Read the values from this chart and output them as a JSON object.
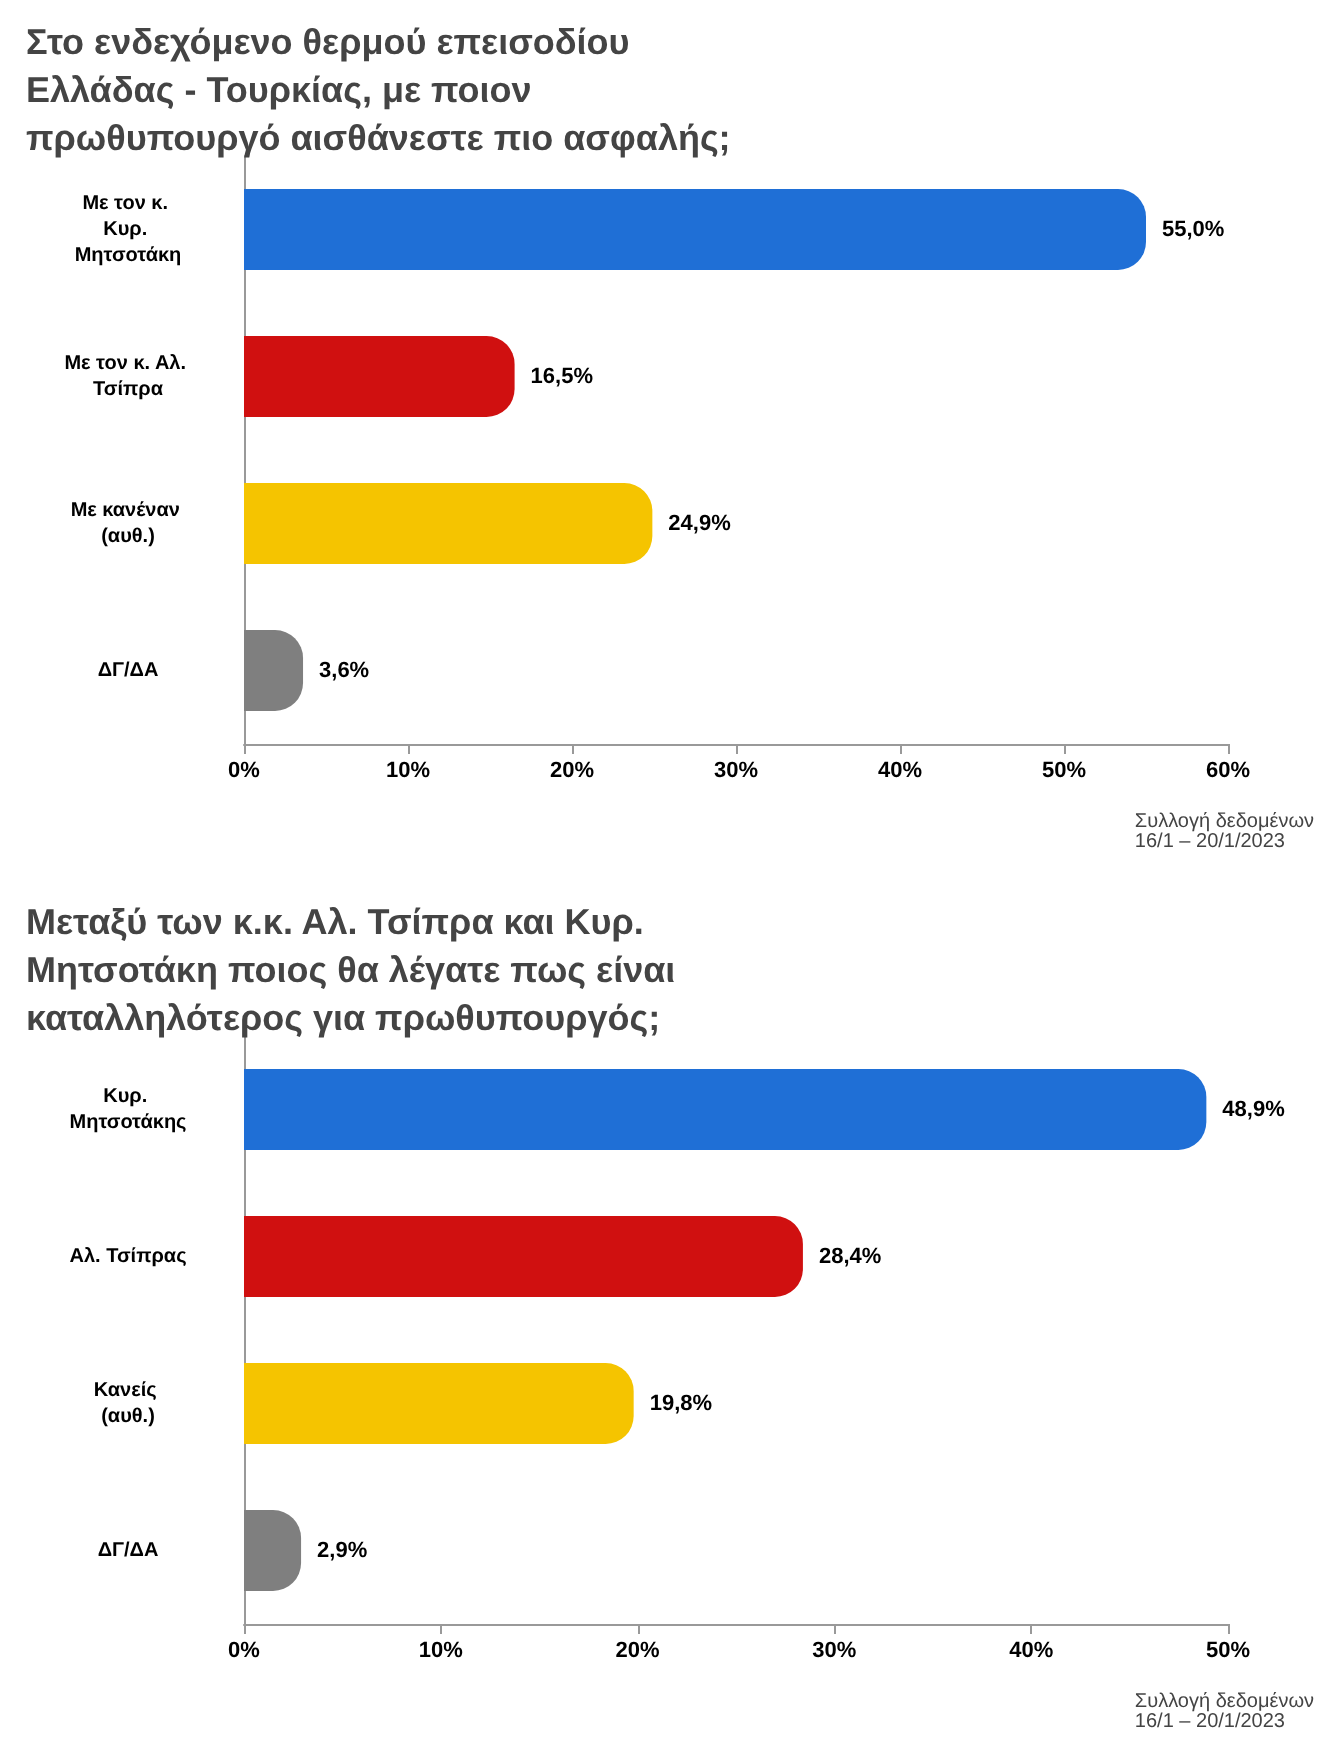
{
  "chart_data": [
    {
      "type": "bar",
      "orientation": "horizontal",
      "title": "Στο ενδεχόμενο θερμού επεισοδίου Ελλάδας - Τουρκίας, με ποιον πρωθυπουργό αισθάνεστε πιο ασφαλής;",
      "categories": [
        "Με τον κ. Κυρ. Μητσοτάκη",
        "Με τον κ. Αλ. Τσίπρα",
        "Με κανέναν (αυθ.)",
        "ΔΓ/ΔΑ"
      ],
      "values": [
        55.0,
        16.5,
        24.9,
        3.6
      ],
      "colors": [
        "#1f6fd6",
        "#d01010",
        "#f5c400",
        "#7f7f7f"
      ],
      "value_labels": [
        "55,0%",
        "16,5%",
        "24,9%",
        "3,6%"
      ],
      "xlim": [
        0,
        60
      ],
      "xticks": [
        {
          "value": 0,
          "label": "0%"
        },
        {
          "value": 10,
          "label": "10%"
        },
        {
          "value": 20,
          "label": "20%"
        },
        {
          "value": 30,
          "label": "30%"
        },
        {
          "value": 40,
          "label": "40%"
        },
        {
          "value": 50,
          "label": "50%"
        },
        {
          "value": 60,
          "label": "60%"
        }
      ],
      "grid": false,
      "annotations": [
        "Συλλογή δεδομένων\n16/1 – 20/1/2023"
      ]
    },
    {
      "type": "bar",
      "orientation": "horizontal",
      "title": "Μεταξύ των κ.κ. Αλ. Τσίπρα και Κυρ. Μητσοτάκη ποιος θα λέγατε πως είναι καταλληλότερος για πρωθυπουργός;",
      "categories": [
        "Κυρ. Μητσοτάκης",
        "Αλ. Τσίπρας",
        "Κανείς (αυθ.)",
        "ΔΓ/ΔΑ"
      ],
      "values": [
        48.9,
        28.4,
        19.8,
        2.9
      ],
      "colors": [
        "#1f6fd6",
        "#d01010",
        "#f5c400",
        "#7f7f7f"
      ],
      "value_labels": [
        "48,9%",
        "28,4%",
        "19,8%",
        "2,9%"
      ],
      "xlim": [
        0,
        50
      ],
      "xticks": [
        {
          "value": 0,
          "label": "0%"
        },
        {
          "value": 10,
          "label": "10%"
        },
        {
          "value": 20,
          "label": "20%"
        },
        {
          "value": 30,
          "label": "30%"
        },
        {
          "value": 40,
          "label": "40%"
        },
        {
          "value": 50,
          "label": "50%"
        }
      ],
      "grid": false,
      "annotations": [
        "Συλλογή δεδομένων\n16/1 – 20/1/2023"
      ]
    }
  ]
}
